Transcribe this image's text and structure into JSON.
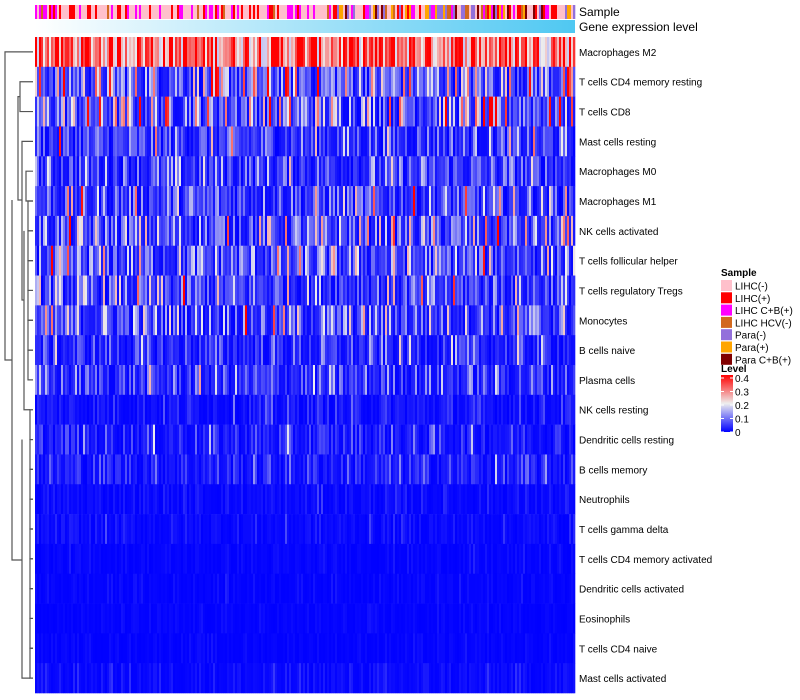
{
  "chart_data": {
    "type": "heatmap",
    "annotation_labels": [
      "Sample",
      "Gene expression level"
    ],
    "rows": [
      "Macrophages M2",
      "T cells CD4 memory resting",
      "T cells CD8",
      "Mast cells resting",
      "Macrophages M0",
      "Macrophages M1",
      "NK cells activated",
      "T cells follicular helper",
      "T cells regulatory  Tregs",
      "Monocytes",
      "B cells naive",
      "Plasma cells",
      "NK cells resting",
      "Dendritic cells resting",
      "B cells memory",
      "Neutrophils",
      "T cells gamma delta",
      "T cells CD4 memory activated",
      "Dendritic cells activated",
      "Eosinophils",
      "T cells CD4 naive",
      "Mast cells activated"
    ],
    "row_mean_level": [
      0.3,
      0.12,
      0.12,
      0.06,
      0.06,
      0.07,
      0.08,
      0.08,
      0.07,
      0.08,
      0.04,
      0.05,
      0.02,
      0.03,
      0.03,
      0.01,
      0.01,
      0.005,
      0.005,
      0.004,
      0.004,
      0.01
    ],
    "n_columns": 270,
    "legend_sample": {
      "title": "Sample",
      "items": [
        {
          "label": "LIHC(-)",
          "color": "#FFC0CB"
        },
        {
          "label": "LIHC(+)",
          "color": "#FF0000"
        },
        {
          "label": "LIHC C+B(+)",
          "color": "#FF00FF"
        },
        {
          "label": "LIHC HCV(-)",
          "color": "#D2691E"
        },
        {
          "label": "Para(-)",
          "color": "#9370DB"
        },
        {
          "label": "Para(+)",
          "color": "#FFA500"
        },
        {
          "label": "Para C+B(+)",
          "color": "#800000"
        }
      ]
    },
    "legend_level": {
      "title": "Level",
      "ticks": [
        "0.4",
        "0.3",
        "0.2",
        "0.1",
        "0"
      ],
      "range": [
        0,
        0.4
      ],
      "colors": [
        "#0000FF",
        "#EEEEEE",
        "#FF0000"
      ]
    },
    "expression_colors": [
      "#FFFFFF",
      "#4FC8F2"
    ]
  }
}
